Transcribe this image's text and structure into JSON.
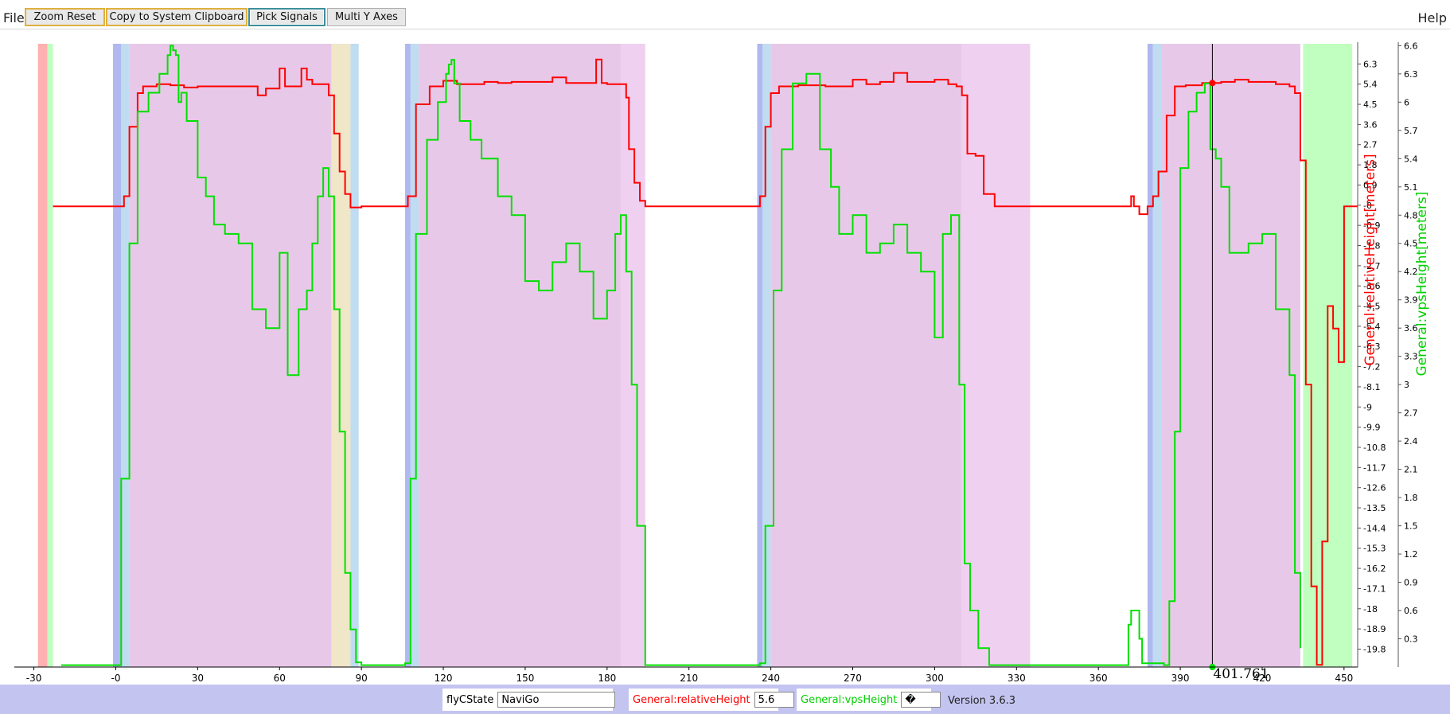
{
  "menu": {
    "file": "File",
    "help": "Help"
  },
  "toolbar": {
    "zoom_reset": "Zoom Reset",
    "copy_clipboard": "Copy to System Clipboard",
    "pick_signals": "Pick Signals",
    "multi_y_axes": "Multi Y Axes"
  },
  "status": {
    "signal1_label": "flyCState",
    "signal1_value": "NaviGo",
    "signal2_label": "General:relativeHeight",
    "signal2_value": "5.6",
    "signal3_label": "General:vpsHeight",
    "signal3_value": "�",
    "version": "Version 3.6.3"
  },
  "colors": {
    "series1": "#ff0000",
    "series2": "#00e000",
    "statusbar": "#c4c4f0"
  },
  "chart_data": {
    "type": "line",
    "xlim": [
      -36,
      455
    ],
    "x_ticks": [
      -30,
      0,
      30,
      60,
      90,
      120,
      150,
      180,
      210,
      240,
      270,
      300,
      330,
      360,
      390,
      420,
      450
    ],
    "x_tick_labels": [
      "-30",
      "-0",
      "30",
      "60",
      "90",
      "120",
      "150",
      "180",
      "210",
      "240",
      "270",
      "300",
      "330",
      "360",
      "390",
      "420",
      "450"
    ],
    "cursor": {
      "x": 401.761,
      "label": "401.761"
    },
    "state_bands": [
      {
        "x0": -28.5,
        "x1": -25,
        "color": "#ffb0b0"
      },
      {
        "x0": -25,
        "x1": -23,
        "color": "#c0ffc0"
      },
      {
        "x0": -1,
        "x1": 2,
        "color": "#b0b8f0"
      },
      {
        "x0": 2,
        "x1": 5,
        "color": "#c0dcf0"
      },
      {
        "x0": 5,
        "x1": 79,
        "color": "#e8c8e8"
      },
      {
        "x0": 79,
        "x1": 86,
        "color": "#f0e6c8"
      },
      {
        "x0": 86,
        "x1": 89,
        "color": "#c0dcf0"
      },
      {
        "x0": 106,
        "x1": 108,
        "color": "#b0b8f0"
      },
      {
        "x0": 108,
        "x1": 111,
        "color": "#c0dcf0"
      },
      {
        "x0": 111,
        "x1": 185,
        "color": "#e8c8e8"
      },
      {
        "x0": 185,
        "x1": 194,
        "color": "#f0d0f0"
      },
      {
        "x0": 235,
        "x1": 237,
        "color": "#b0b8f0"
      },
      {
        "x0": 237,
        "x1": 240,
        "color": "#c0dcf0"
      },
      {
        "x0": 240,
        "x1": 310,
        "color": "#e8c8e8"
      },
      {
        "x0": 310,
        "x1": 335,
        "color": "#f0d0f0"
      },
      {
        "x0": 378,
        "x1": 380,
        "color": "#b0b8f0"
      },
      {
        "x0": 380,
        "x1": 383,
        "color": "#c0dcf0"
      },
      {
        "x0": 383,
        "x1": 434,
        "color": "#e8c8e8"
      },
      {
        "x0": 435,
        "x1": 453,
        "color": "#c0ffc0"
      }
    ],
    "axes": [
      {
        "label": "General:relativeHeight[meters]",
        "color": "#ff0000",
        "ylim": [
          -20.6,
          7.2
        ],
        "ticks": [
          6.3,
          5.4,
          4.5,
          3.6,
          2.7,
          1.8,
          0.9,
          -0.0,
          -0.9,
          -1.8,
          -2.7,
          -3.6,
          -4.5,
          -5.4,
          -6.3,
          -7.2,
          -8.1,
          -9.0,
          -9.9,
          -10.8,
          -11.7,
          -12.6,
          -13.5,
          -14.4,
          -15.3,
          -16.2,
          -17.1,
          -18.0,
          -18.9,
          -19.8
        ],
        "tick_labels": [
          "6.3",
          "5.4",
          "4.5",
          "3.6",
          "2.7",
          "1.8",
          "0.9",
          "-0",
          "-0.9",
          "-1.8",
          "-2.7",
          "-3.6",
          "-4.5",
          "-5.4",
          "-6.3",
          "-7.2",
          "-8.1",
          "-9",
          "-9.9",
          "-10.8",
          "-11.7",
          "-12.6",
          "-13.5",
          "-14.4",
          "-15.3",
          "-16.2",
          "-17.1",
          "-18",
          "-18.9",
          "-19.8"
        ]
      },
      {
        "label": "General:vpsHeight[meters]",
        "color": "#00d000",
        "ylim": [
          0.0,
          6.62
        ],
        "ticks": [
          6.6,
          6.3,
          6.0,
          5.7,
          5.4,
          5.1,
          4.8,
          4.5,
          4.2,
          3.9,
          3.6,
          3.3,
          3.0,
          2.7,
          2.4,
          2.1,
          1.8,
          1.5,
          1.2,
          0.9,
          0.6,
          0.3
        ],
        "tick_labels": [
          "6.6",
          "6.3",
          "6",
          "5.7",
          "5.4",
          "5.1",
          "4.8",
          "4.5",
          "4.2",
          "3.9",
          "3.6",
          "3.3",
          "3",
          "2.7",
          "2.4",
          "2.1",
          "1.8",
          "1.5",
          "1.2",
          "0.9",
          "0.6",
          "0.3"
        ]
      }
    ],
    "series": [
      {
        "name": "General:relativeHeight",
        "color": "#ff0000",
        "axis": 0,
        "x": [
          -23,
          1,
          3,
          5,
          8,
          10,
          15,
          20,
          25,
          30,
          40,
          50,
          52,
          55,
          58,
          60,
          62,
          65,
          68,
          70,
          72,
          75,
          78,
          80,
          82,
          84,
          86,
          88,
          90,
          100,
          105,
          107,
          110,
          115,
          120,
          125,
          130,
          135,
          140,
          145,
          150,
          155,
          160,
          165,
          170,
          173,
          176,
          178,
          180,
          185,
          187,
          188,
          190,
          192,
          194,
          200,
          234,
          236,
          238,
          240,
          243,
          246,
          250,
          255,
          260,
          265,
          270,
          275,
          280,
          285,
          290,
          295,
          300,
          305,
          308,
          310,
          312,
          315,
          318,
          322,
          330,
          340,
          350,
          360,
          370,
          372,
          373,
          374,
          375,
          378,
          380,
          382,
          385,
          388,
          392,
          398,
          402,
          405,
          410,
          415,
          420,
          425,
          430,
          432,
          434,
          436,
          438,
          440,
          442,
          444,
          446,
          448,
          450,
          452,
          455
        ],
        "y": [
          -0.05,
          -0.05,
          0.4,
          3.5,
          5.0,
          5.3,
          5.4,
          5.35,
          5.25,
          5.3,
          5.3,
          5.3,
          4.9,
          5.2,
          5.2,
          6.1,
          5.3,
          5.3,
          6.1,
          5.6,
          5.4,
          5.4,
          4.9,
          3.2,
          1.5,
          0.5,
          -0.1,
          -0.1,
          -0.05,
          -0.05,
          -0.05,
          0.4,
          4.5,
          5.3,
          5.55,
          5.4,
          5.4,
          5.5,
          5.45,
          5.5,
          5.5,
          5.5,
          5.7,
          5.45,
          5.45,
          5.45,
          6.5,
          5.45,
          5.4,
          5.4,
          4.8,
          2.5,
          1.0,
          0.2,
          -0.05,
          -0.05,
          -0.05,
          0.4,
          3.5,
          5.0,
          5.3,
          5.3,
          5.35,
          5.35,
          5.3,
          5.3,
          5.6,
          5.4,
          5.5,
          5.9,
          5.5,
          5.5,
          5.6,
          5.4,
          5.3,
          4.9,
          2.3,
          2.2,
          0.5,
          -0.05,
          -0.05,
          -0.05,
          -0.05,
          -0.05,
          -0.05,
          0.4,
          -0.05,
          -0.05,
          -0.4,
          -0.05,
          0.4,
          1.5,
          4.0,
          5.3,
          5.35,
          5.45,
          5.45,
          5.5,
          5.6,
          5.5,
          5.5,
          5.4,
          5.3,
          5.0,
          2.0,
          -8.0,
          -17.0,
          -20.5,
          -15.0,
          -4.5,
          -5.5,
          -7.0,
          -0.05,
          -0.05,
          -0.05
        ]
      },
      {
        "name": "General:vpsHeight",
        "color": "#00e000",
        "axis": 1,
        "x": [
          -20,
          -1,
          2,
          5,
          8,
          12,
          16,
          19,
          20,
          21,
          22,
          23,
          24,
          26,
          30,
          33,
          36,
          40,
          45,
          50,
          55,
          60,
          63,
          67,
          70,
          72,
          74,
          76,
          78,
          80,
          82,
          84,
          86,
          88,
          90,
          104,
          106,
          108,
          110,
          114,
          118,
          121,
          122,
          123,
          124,
          126,
          130,
          134,
          140,
          145,
          150,
          155,
          160,
          165,
          170,
          175,
          180,
          183,
          185,
          187,
          189,
          191,
          194,
          234,
          236,
          238,
          241,
          244,
          248,
          253,
          258,
          262,
          265,
          270,
          275,
          280,
          285,
          290,
          295,
          300,
          303,
          306,
          309,
          311,
          313,
          316,
          320,
          322,
          324,
          370,
          371,
          372,
          373,
          374,
          375,
          376,
          384,
          386,
          388,
          390,
          393,
          396,
          399,
          400,
          401,
          403,
          405,
          408,
          415,
          420,
          425,
          430,
          432,
          434
        ],
        "y": [
          0.02,
          0.02,
          2.0,
          4.5,
          5.9,
          6.1,
          6.3,
          6.5,
          6.6,
          6.55,
          6.5,
          6.0,
          6.1,
          5.8,
          5.2,
          5.0,
          4.7,
          4.6,
          4.5,
          3.8,
          3.6,
          4.4,
          3.1,
          3.8,
          4.0,
          4.5,
          5.0,
          5.3,
          5.0,
          3.8,
          2.5,
          1.0,
          0.4,
          0.05,
          0.02,
          0.02,
          0.04,
          2.0,
          4.6,
          5.6,
          6.0,
          6.3,
          6.4,
          6.45,
          6.2,
          5.8,
          5.6,
          5.4,
          5.0,
          4.8,
          4.1,
          4.0,
          4.3,
          4.5,
          4.2,
          3.7,
          4.0,
          4.6,
          4.8,
          4.2,
          3.0,
          1.5,
          0.02,
          0.02,
          0.04,
          1.5,
          4.0,
          5.5,
          6.2,
          6.3,
          5.5,
          5.1,
          4.6,
          4.8,
          4.4,
          4.5,
          4.7,
          4.4,
          4.2,
          3.5,
          4.6,
          4.8,
          3.0,
          1.1,
          0.6,
          0.2,
          0.02,
          0.02,
          0.02,
          0.02,
          0.45,
          0.6,
          0.6,
          0.6,
          0.3,
          0.04,
          0.02,
          0.7,
          2.5,
          5.3,
          5.9,
          6.1,
          6.2,
          6.2,
          5.5,
          5.4,
          5.1,
          4.4,
          4.5,
          4.6,
          3.8,
          3.1,
          1.0,
          0.2
        ]
      }
    ]
  }
}
